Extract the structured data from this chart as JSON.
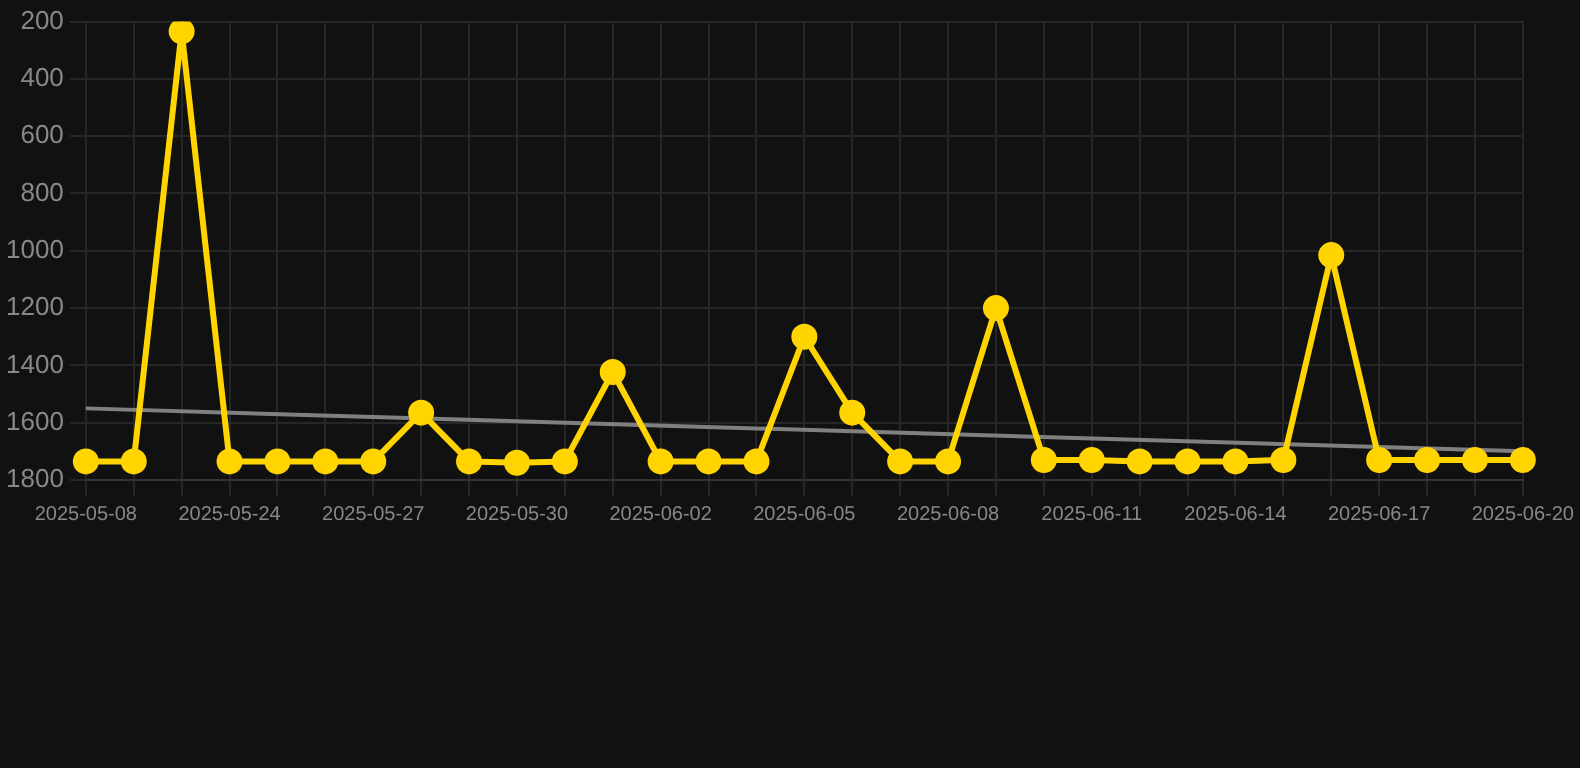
{
  "chart_data": {
    "type": "line",
    "categories": [
      "2025-05-08",
      null,
      null,
      "2025-05-24",
      null,
      null,
      "2025-05-27",
      null,
      null,
      "2025-05-30",
      null,
      null,
      "2025-06-02",
      null,
      null,
      "2025-06-05",
      null,
      null,
      "2025-06-08",
      null,
      null,
      "2025-06-11",
      null,
      null,
      "2025-06-14",
      null,
      null,
      "2025-06-17",
      null,
      null,
      "2025-06-20"
    ],
    "series": [
      {
        "color": "#ffd400",
        "values": [
          1735,
          1735,
          234,
          1735,
          1735,
          1735,
          1735,
          1565,
          1735,
          1740,
          1735,
          1423,
          1735,
          1735,
          1735,
          1300,
          1565,
          1735,
          1735,
          1200,
          1730,
          1730,
          1735,
          1735,
          1735,
          1730,
          1015,
          1730,
          1730,
          1730,
          1730
        ]
      },
      {
        "type": "line",
        "color": "#808080",
        "marker": "none",
        "values": [
          1550,
          null,
          null,
          null,
          null,
          null,
          null,
          null,
          null,
          null,
          null,
          null,
          null,
          null,
          null,
          null,
          null,
          null,
          null,
          null,
          null,
          null,
          null,
          null,
          null,
          null,
          null,
          null,
          null,
          null,
          1700
        ]
      }
    ],
    "ylim": [
      1800,
      200
    ],
    "yticks": [
      200,
      400,
      600,
      800,
      1000,
      1200,
      1400,
      1600,
      1800
    ],
    "grid": true,
    "marker": "circle",
    "line_style": "solid"
  }
}
